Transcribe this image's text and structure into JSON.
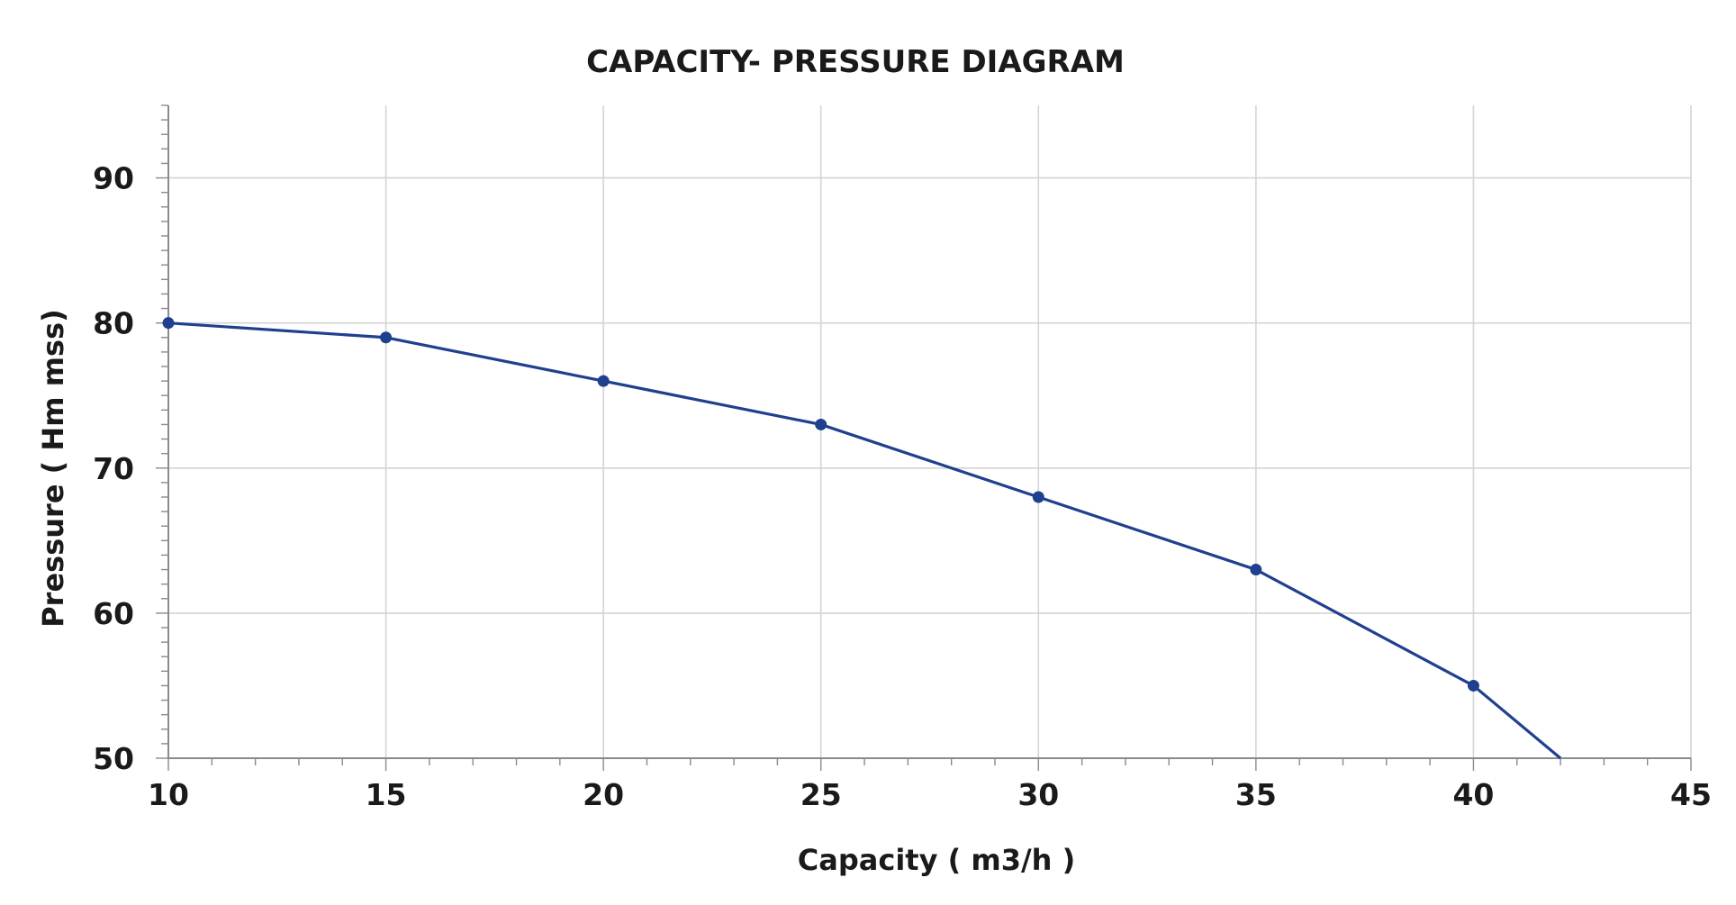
{
  "chart_data": {
    "type": "line",
    "title": "CAPACITY- PRESSURE DIAGRAM",
    "xlabel": "Capacity ( m3/h )",
    "ylabel": "Pressure ( Hm mss)",
    "xlim": [
      10,
      45
    ],
    "ylim": [
      50,
      95
    ],
    "x_ticks": [
      10,
      15,
      20,
      25,
      30,
      35,
      40,
      45
    ],
    "y_ticks": [
      50,
      60,
      70,
      80,
      90
    ],
    "x_tick_labels": [
      "10",
      "15",
      "20",
      "25",
      "30",
      "35",
      "40",
      "45"
    ],
    "y_tick_labels": [
      "50",
      "60",
      "70",
      "80",
      "90"
    ],
    "grid": true,
    "legend": "none",
    "series": [
      {
        "name": "Pressure",
        "color": "#1f3f8f",
        "x": [
          10,
          15,
          20,
          25,
          30,
          35,
          40,
          42
        ],
        "y": [
          80,
          79,
          76,
          73,
          68,
          63,
          55,
          50
        ],
        "markers": [
          true,
          true,
          true,
          true,
          true,
          true,
          true,
          false
        ]
      }
    ]
  }
}
